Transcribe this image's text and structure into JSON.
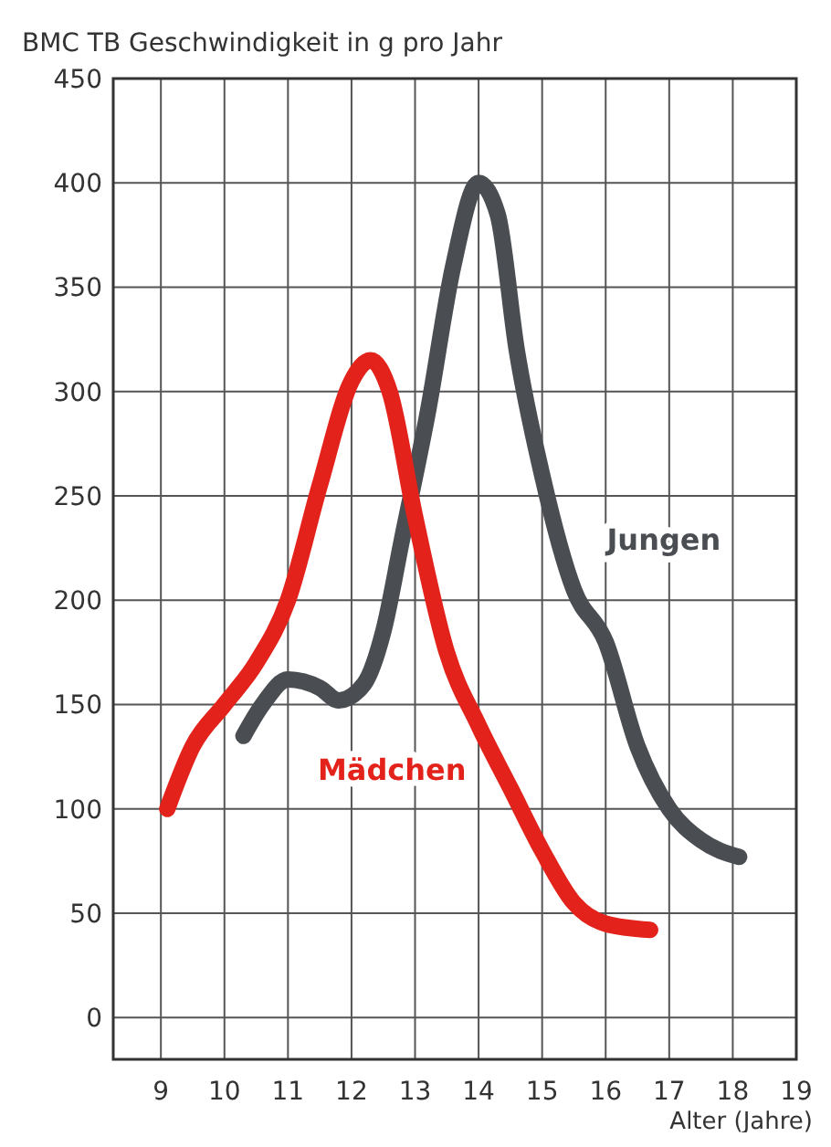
{
  "chart_data": {
    "type": "line",
    "title": "BMC TB Geschwindigkeit in g pro Jahr",
    "xlabel": "Alter (Jahre)",
    "xlim": [
      8.25,
      19
    ],
    "xticks": [
      9,
      10,
      11,
      12,
      13,
      14,
      15,
      16,
      17,
      18,
      19
    ],
    "ylim": [
      -20,
      450
    ],
    "yticks": [
      0,
      50,
      100,
      150,
      200,
      250,
      300,
      350,
      400,
      450
    ],
    "grid": true,
    "legend": false,
    "marker": "none",
    "line_style": "solid",
    "series": [
      {
        "name": "Jungen",
        "color": "#4a4d52",
        "x": [
          10.3,
          10.6,
          11,
          11.5,
          11.8,
          12.2,
          12.5,
          12.8,
          13.2,
          13.6,
          14,
          14.3,
          14.6,
          15,
          15.5,
          16,
          16.5,
          17,
          17.5,
          18.1
        ],
        "values": [
          135,
          150,
          162,
          158,
          152,
          160,
          185,
          230,
          290,
          360,
          400,
          385,
          320,
          260,
          205,
          180,
          130,
          100,
          85,
          77
        ]
      },
      {
        "name": "Mädchen",
        "color": "#e3231b",
        "x": [
          9.1,
          9.5,
          10,
          10.5,
          11,
          11.5,
          12,
          12.3,
          12.6,
          13,
          13.5,
          14,
          14.5,
          15,
          15.5,
          16,
          16.7
        ],
        "values": [
          100,
          130,
          150,
          170,
          200,
          255,
          305,
          315,
          300,
          240,
          175,
          140,
          110,
          80,
          55,
          45,
          42
        ]
      }
    ]
  }
}
